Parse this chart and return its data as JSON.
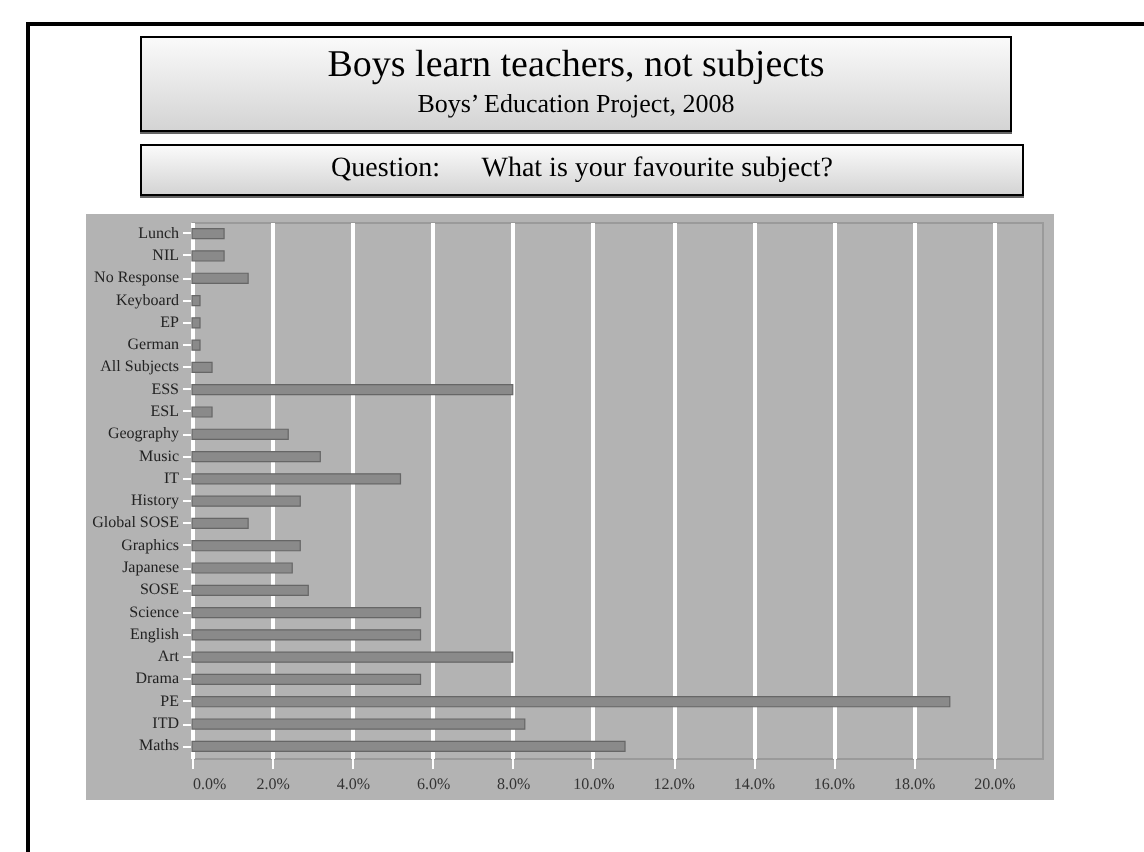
{
  "chart_data": {
    "type": "bar",
    "orientation": "horizontal",
    "title": "Boys learn teachers, not subjects",
    "subtitle": "Boys’ Education Project, 2008",
    "annotations": [
      "Question:      What is your favourite subject?"
    ],
    "categories": [
      "Lunch",
      "NIL",
      "No Response",
      "Keyboard",
      "EP",
      "German",
      "All Subjects",
      "ESS",
      "ESL",
      "Geography",
      "Music",
      "IT",
      "History",
      "Global SOSE",
      "Graphics",
      "Japanese",
      "SOSE",
      "Science",
      "English",
      "Art",
      "Drama",
      "PE",
      "ITD",
      "Maths"
    ],
    "values": [
      0.8,
      0.8,
      1.4,
      0.2,
      0.2,
      0.2,
      0.5,
      8.0,
      0.5,
      2.4,
      3.2,
      5.2,
      2.7,
      1.4,
      2.7,
      2.5,
      2.9,
      5.7,
      5.7,
      8.0,
      5.7,
      18.9,
      8.3,
      10.8
    ],
    "color": "#8a8a8a",
    "xlim": [
      0,
      21.2
    ],
    "xticks": [
      {
        "value": 0,
        "label": "0.0%"
      },
      {
        "value": 2,
        "label": "2.0%"
      },
      {
        "value": 4,
        "label": "4.0%"
      },
      {
        "value": 6,
        "label": "6.0%"
      },
      {
        "value": 8,
        "label": "8.0%"
      },
      {
        "value": 10,
        "label": "10.0%"
      },
      {
        "value": 12,
        "label": "12.0%"
      },
      {
        "value": 14,
        "label": "14.0%"
      },
      {
        "value": 16,
        "label": "16.0%"
      },
      {
        "value": 18,
        "label": "18.0%"
      },
      {
        "value": 20,
        "label": "20.0%"
      }
    ],
    "grid": "x"
  }
}
